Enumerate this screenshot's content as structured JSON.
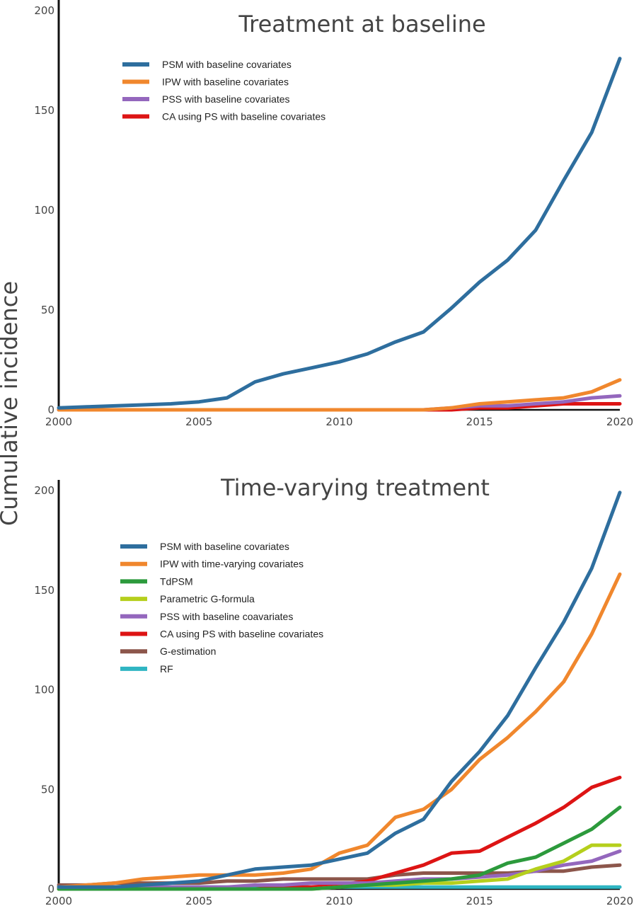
{
  "figure": {
    "ylabel": "Cumulative incidence"
  },
  "chart_data": [
    {
      "type": "line",
      "title": "Treatment at baseline",
      "xlabel": "",
      "ylabel": "Cumulative incidence",
      "xlim": [
        2000,
        2020
      ],
      "ylim": [
        0,
        200
      ],
      "xticks": [
        2000,
        2005,
        2010,
        2015,
        2020
      ],
      "yticks": [
        0,
        50,
        100,
        150,
        200
      ],
      "legend_position": "top-left",
      "grid": false,
      "x": [
        2000,
        2001,
        2002,
        2003,
        2004,
        2005,
        2006,
        2007,
        2008,
        2009,
        2010,
        2011,
        2012,
        2013,
        2014,
        2015,
        2016,
        2017,
        2018,
        2019,
        2020
      ],
      "series": [
        {
          "name": "PSM with baseline covariates",
          "color": "#2e6e9e",
          "values": [
            1,
            1.5,
            2,
            2.5,
            3,
            4,
            6,
            14,
            18,
            21,
            24,
            28,
            34,
            39,
            51,
            64,
            75,
            90,
            115,
            139,
            176
          ]
        },
        {
          "name": "IPW with baseline covariates",
          "color": "#f0872d",
          "values": [
            0,
            0,
            0,
            0,
            0,
            0,
            0,
            0,
            0,
            0,
            0,
            0,
            0,
            0,
            1,
            3,
            4,
            5,
            6,
            9,
            15
          ]
        },
        {
          "name": "PSS with baseline covariates",
          "color": "#9467bd",
          "values": [
            0,
            0,
            0,
            0,
            0,
            0,
            0,
            0,
            0,
            0,
            0,
            0,
            0,
            0,
            1,
            2,
            2,
            3,
            4,
            6,
            7
          ]
        },
        {
          "name": "CA using PS with baseline covariates",
          "color": "#dd1414",
          "values": [
            0,
            0,
            0,
            0,
            0,
            0,
            0,
            0,
            0,
            0,
            0,
            0,
            0,
            0,
            0,
            1,
            1,
            2,
            3,
            3,
            3
          ]
        }
      ]
    },
    {
      "type": "line",
      "title": "Time-varying treatment",
      "xlabel": "",
      "ylabel": "Cumulative incidence",
      "xlim": [
        2000,
        2020
      ],
      "ylim": [
        0,
        200
      ],
      "xticks": [
        2000,
        2005,
        2010,
        2015,
        2020
      ],
      "yticks": [
        0,
        50,
        100,
        150,
        200
      ],
      "legend_position": "top-left",
      "grid": false,
      "x": [
        2000,
        2001,
        2002,
        2003,
        2004,
        2005,
        2006,
        2007,
        2008,
        2009,
        2010,
        2011,
        2012,
        2013,
        2014,
        2015,
        2016,
        2017,
        2018,
        2019,
        2020
      ],
      "series": [
        {
          "name": "PSM with baseline covariates",
          "color": "#2e6e9e",
          "values": [
            1,
            1,
            1,
            2,
            3,
            4,
            7,
            10,
            11,
            12,
            15,
            18,
            28,
            35,
            54,
            69,
            87,
            111,
            134,
            161,
            199
          ]
        },
        {
          "name": "IPW with time-varying covariates",
          "color": "#f0872d",
          "values": [
            1,
            2,
            3,
            5,
            6,
            7,
            7,
            7,
            8,
            10,
            18,
            22,
            36,
            40,
            50,
            65,
            76,
            89,
            104,
            128,
            158
          ]
        },
        {
          "name": "TdPSM",
          "color": "#2c9a3c",
          "values": [
            0,
            0,
            0,
            0,
            0,
            0,
            0,
            0,
            0,
            0,
            1,
            2,
            3,
            4,
            5,
            7,
            13,
            16,
            23,
            30,
            41
          ]
        },
        {
          "name": "Parametric G-formula",
          "color": "#b5cf1c",
          "values": [
            0,
            0,
            0,
            0,
            0,
            0,
            0,
            0,
            0,
            0,
            1,
            2,
            2,
            3,
            3,
            4,
            5,
            10,
            14,
            22,
            22
          ]
        },
        {
          "name": "PSS with baseline coavariates",
          "color": "#9467bd",
          "values": [
            1,
            1,
            1,
            1,
            1,
            1,
            1,
            2,
            2,
            3,
            3,
            3,
            4,
            5,
            5,
            6,
            7,
            9,
            12,
            14,
            19
          ]
        },
        {
          "name": "CA using PS with baseline covariates",
          "color": "#dd1414",
          "values": [
            0,
            0,
            0,
            0,
            0,
            0,
            0,
            0,
            1,
            1,
            2,
            4,
            8,
            12,
            18,
            19,
            26,
            33,
            41,
            51,
            56
          ]
        },
        {
          "name": "G-estimation",
          "color": "#8c564b",
          "values": [
            2,
            2,
            3,
            3,
            3,
            3,
            4,
            4,
            5,
            5,
            5,
            5,
            7,
            8,
            8,
            8,
            8,
            9,
            9,
            11,
            12
          ]
        },
        {
          "name": "RF",
          "color": "#2fb5c2",
          "values": [
            1,
            1,
            1,
            1,
            1,
            1,
            1,
            1,
            1,
            1,
            1,
            1,
            1,
            1,
            1,
            1,
            1,
            1,
            1,
            1,
            1
          ]
        }
      ]
    }
  ]
}
